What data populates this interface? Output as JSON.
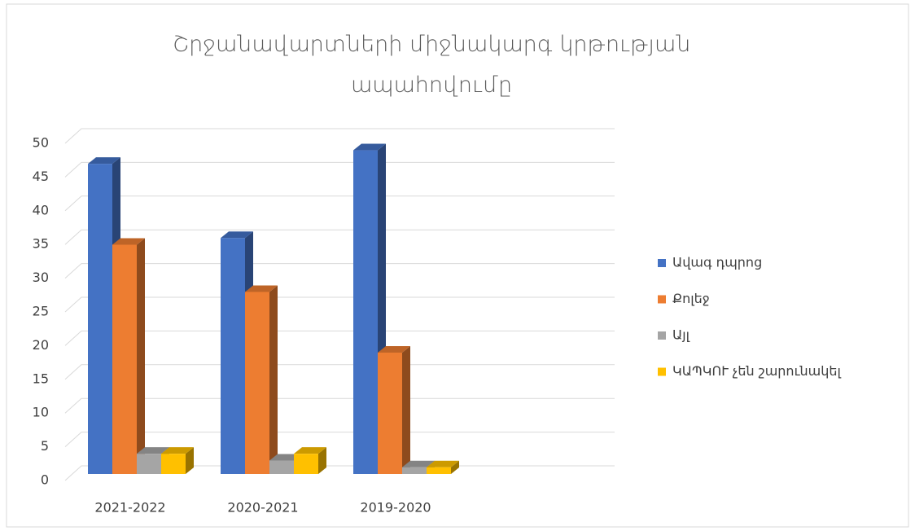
{
  "chart_data": {
    "type": "bar3d",
    "title": "Շրջանավարտների  միջնակարգ կրթության ապահովումը",
    "categories": [
      "2021-2022",
      "2020-2021",
      "2019-2020"
    ],
    "series": [
      {
        "name": "Ավագ դպրոց",
        "color": "#4472c4",
        "values": [
          46,
          35,
          48
        ]
      },
      {
        "name": "Քոլեջ",
        "color": "#ed7d31",
        "values": [
          34,
          27,
          18
        ]
      },
      {
        "name": "Այլ",
        "color": "#a5a5a5",
        "values": [
          3,
          2,
          1
        ]
      },
      {
        "name": "ԿԱՊԿՈՒ չեն շարունակել",
        "color": "#ffc000",
        "values": [
          3,
          3,
          1
        ]
      }
    ],
    "ylim": [
      0,
      50
    ],
    "yticks": [
      0,
      5,
      10,
      15,
      20,
      25,
      30,
      35,
      40,
      45,
      50
    ],
    "grid": true,
    "legend": "right"
  }
}
